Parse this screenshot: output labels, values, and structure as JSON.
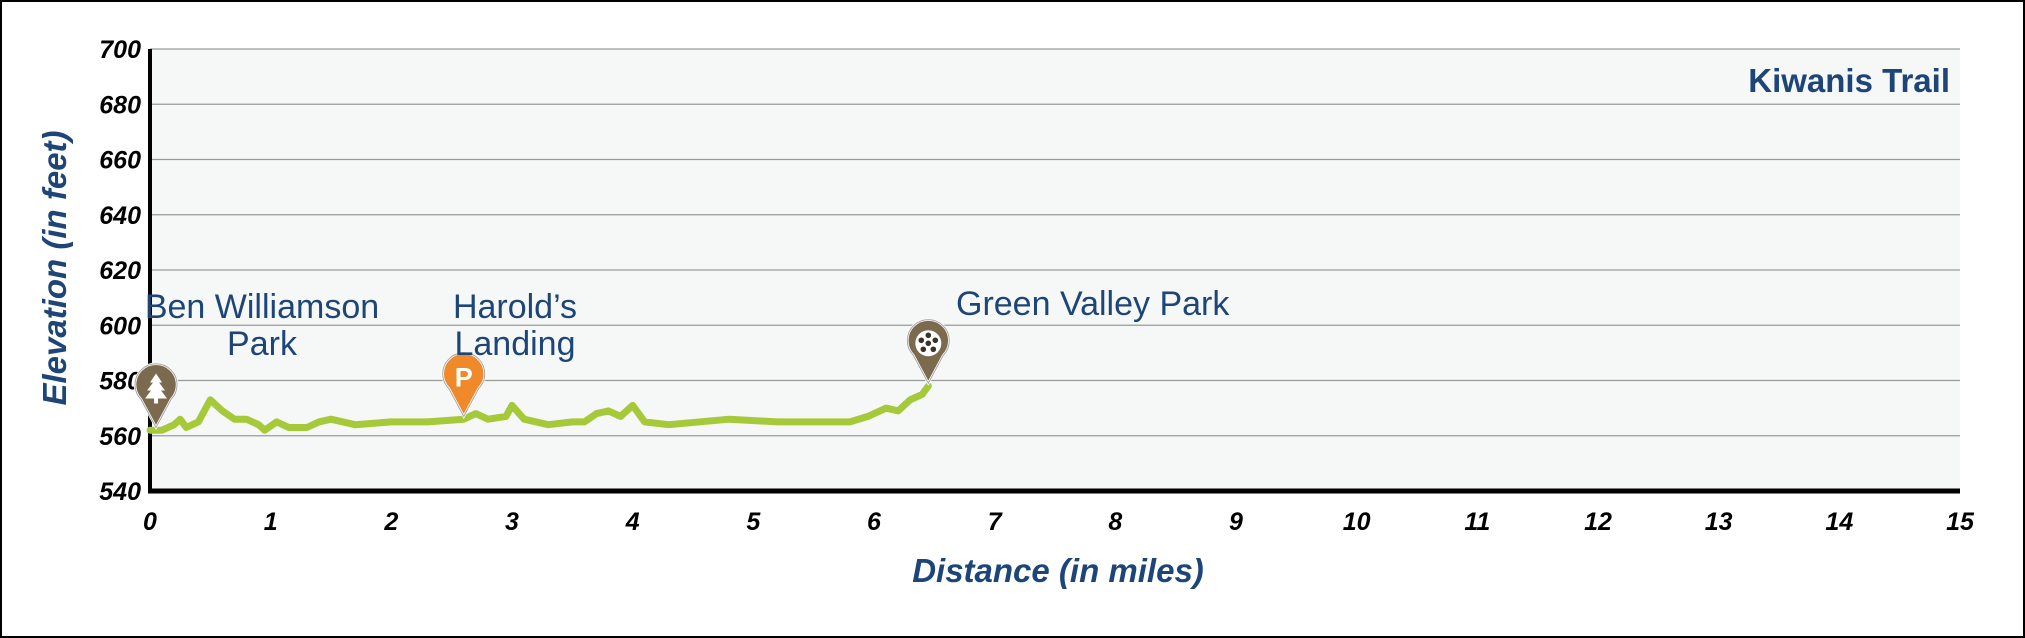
{
  "chart_data": {
    "type": "line",
    "title": "Kiwanis Trail",
    "xlabel": "Distance (in miles)",
    "ylabel": "Elevation (in feet)",
    "xlim": [
      0,
      15
    ],
    "ylim": [
      540,
      700
    ],
    "x_ticks": [
      "0",
      "1",
      "2",
      "3",
      "4",
      "5",
      "6",
      "7",
      "8",
      "9",
      "10",
      "11",
      "12",
      "13",
      "14",
      "15"
    ],
    "y_ticks": [
      "540",
      "560",
      "580",
      "600",
      "620",
      "640",
      "660",
      "680",
      "700"
    ],
    "grid": true,
    "series": [
      {
        "color": "#a6c93a",
        "points": [
          [
            0.0,
            562
          ],
          [
            0.1,
            562
          ],
          [
            0.2,
            564
          ],
          [
            0.25,
            566
          ],
          [
            0.3,
            563
          ],
          [
            0.4,
            565
          ],
          [
            0.5,
            573
          ],
          [
            0.6,
            569
          ],
          [
            0.7,
            566
          ],
          [
            0.8,
            566
          ],
          [
            0.9,
            564
          ],
          [
            0.95,
            562
          ],
          [
            1.05,
            565
          ],
          [
            1.15,
            563
          ],
          [
            1.3,
            563
          ],
          [
            1.4,
            565
          ],
          [
            1.5,
            566
          ],
          [
            1.7,
            564
          ],
          [
            2.0,
            565
          ],
          [
            2.3,
            565
          ],
          [
            2.6,
            566
          ],
          [
            2.7,
            568
          ],
          [
            2.8,
            566
          ],
          [
            2.95,
            567
          ],
          [
            3.0,
            571
          ],
          [
            3.1,
            566
          ],
          [
            3.3,
            564
          ],
          [
            3.5,
            565
          ],
          [
            3.6,
            565
          ],
          [
            3.7,
            568
          ],
          [
            3.8,
            569
          ],
          [
            3.9,
            567
          ],
          [
            4.0,
            571
          ],
          [
            4.1,
            565
          ],
          [
            4.3,
            564
          ],
          [
            4.8,
            566
          ],
          [
            5.2,
            565
          ],
          [
            5.8,
            565
          ],
          [
            5.95,
            567
          ],
          [
            6.1,
            570
          ],
          [
            6.2,
            569
          ],
          [
            6.3,
            573
          ],
          [
            6.4,
            575
          ],
          [
            6.45,
            578
          ]
        ]
      }
    ],
    "annotations": [
      {
        "label_lines": [
          "Ben Williamson",
          "Park"
        ],
        "x": 0.05,
        "y": 563,
        "icon": "tree-pin-icon",
        "color": "#7b6a4e"
      },
      {
        "label_lines": [
          "Harold’s",
          "Landing"
        ],
        "x": 2.6,
        "y": 567,
        "icon": "parking-pin-icon",
        "color": "#f0892a",
        "glyph": "P"
      },
      {
        "label_lines": [
          "Green Valley Park"
        ],
        "x": 6.45,
        "y": 579,
        "icon": "soccer-ball-pin-icon",
        "color": "#7b6a4e"
      }
    ]
  }
}
